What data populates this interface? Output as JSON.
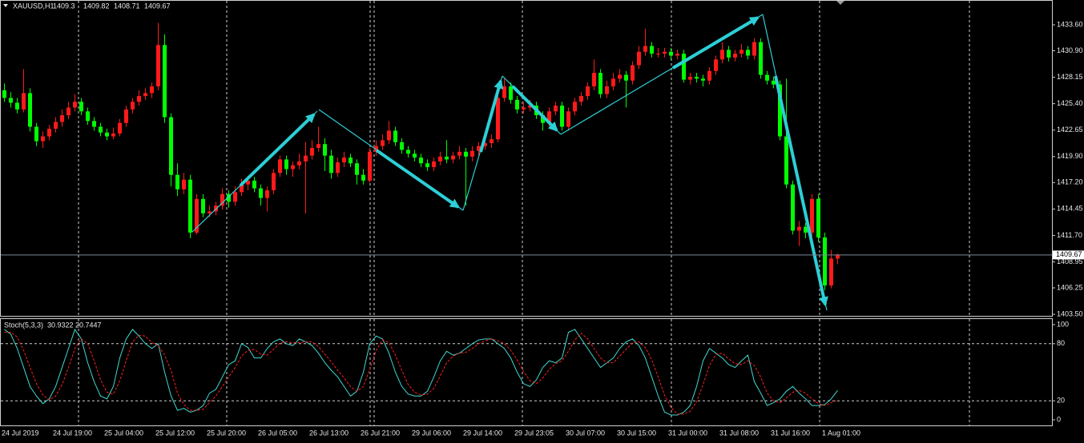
{
  "chart_data": [
    {
      "type": "candlestick",
      "symbol": "XAUUSD,H1",
      "up_color": "#ff1a1a",
      "down_color": "#00ff00",
      "categories": [
        "24 Jul 2019",
        null,
        null,
        null,
        null,
        null,
        null,
        null,
        "24 Jul 19:00",
        null,
        null,
        null,
        null,
        null,
        null,
        null,
        "25 Jul 04:00",
        null,
        null,
        null,
        null,
        null,
        null,
        null,
        "25 Jul 12:00",
        null,
        null,
        null,
        null,
        null,
        null,
        null,
        "25 Jul 20:00",
        null,
        null,
        null,
        null,
        null,
        null,
        null,
        "26 Jul 05:00",
        null,
        null,
        null,
        null,
        null,
        null,
        null,
        "26 Jul 13:00",
        null,
        null,
        null,
        null,
        null,
        null,
        null,
        "26 Jul 21:00",
        null,
        null,
        null,
        null,
        null,
        null,
        null,
        "29 Jul 06:00",
        null,
        null,
        null,
        null,
        null,
        null,
        null,
        "29 Jul 14:00",
        null,
        null,
        null,
        null,
        null,
        null,
        null,
        "29 Jul 23:05",
        null,
        null,
        null,
        null,
        null,
        null,
        null,
        "30 Jul 07:00",
        null,
        null,
        null,
        null,
        null,
        null,
        null,
        "30 Jul 15:00",
        null,
        null,
        null,
        null,
        null,
        null,
        null,
        "31 Jul 00:00",
        null,
        null,
        null,
        null,
        null,
        null,
        null,
        "31 Jul 08:00",
        null,
        null,
        null,
        null,
        null,
        null,
        null,
        "31 Jul 16:00",
        null,
        null,
        null,
        null,
        null,
        null,
        null,
        "1 Aug 01:00",
        null,
        null
      ],
      "candles": [
        [
          1426.8,
          1427.5,
          1425.6,
          1426.0
        ],
        [
          1426.0,
          1426.6,
          1425.0,
          1425.5
        ],
        [
          1425.5,
          1426.0,
          1424.4,
          1424.8
        ],
        [
          1424.8,
          1429.0,
          1424.5,
          1426.5
        ],
        [
          1426.5,
          1427.0,
          1422.5,
          1423.0
        ],
        [
          1423.0,
          1423.4,
          1421.0,
          1421.5
        ],
        [
          1421.5,
          1422.5,
          1420.8,
          1422.0
        ],
        [
          1422.0,
          1423.2,
          1421.6,
          1422.8
        ],
        [
          1422.8,
          1424.0,
          1422.4,
          1423.5
        ],
        [
          1423.5,
          1424.8,
          1423.0,
          1424.2
        ],
        [
          1424.2,
          1425.6,
          1423.8,
          1425.0
        ],
        [
          1425.0,
          1426.4,
          1424.6,
          1425.6
        ],
        [
          1425.6,
          1426.0,
          1424.2,
          1424.6
        ],
        [
          1424.6,
          1425.0,
          1423.2,
          1423.6
        ],
        [
          1423.6,
          1424.0,
          1422.6,
          1423.0
        ],
        [
          1423.0,
          1423.4,
          1422.0,
          1422.4
        ],
        [
          1422.4,
          1422.8,
          1421.6,
          1422.0
        ],
        [
          1422.0,
          1422.9,
          1421.7,
          1422.3
        ],
        [
          1422.3,
          1423.8,
          1422.0,
          1423.4
        ],
        [
          1423.4,
          1425.2,
          1423.0,
          1424.8
        ],
        [
          1424.8,
          1426.0,
          1424.4,
          1425.6
        ],
        [
          1425.6,
          1426.8,
          1425.2,
          1426.2
        ],
        [
          1426.2,
          1427.0,
          1425.8,
          1426.5
        ],
        [
          1426.5,
          1427.6,
          1426.0,
          1427.2
        ],
        [
          1427.2,
          1433.8,
          1426.8,
          1431.5
        ],
        [
          1431.5,
          1432.6,
          1423.4,
          1424.0
        ],
        [
          1424.0,
          1424.4,
          1416.8,
          1418.0
        ],
        [
          1418.0,
          1419.2,
          1415.8,
          1416.5
        ],
        [
          1416.5,
          1418.2,
          1416.0,
          1417.5
        ],
        [
          1417.5,
          1418.0,
          1411.4,
          1412.0
        ],
        [
          1412.0,
          1416.0,
          1411.8,
          1415.5
        ],
        [
          1415.5,
          1416.0,
          1413.6,
          1414.0
        ],
        [
          1414.0,
          1414.8,
          1413.6,
          1414.2
        ],
        [
          1414.2,
          1415.2,
          1413.8,
          1414.8
        ],
        [
          1414.8,
          1416.6,
          1414.4,
          1416.0
        ],
        [
          1416.0,
          1416.4,
          1414.6,
          1415.2
        ],
        [
          1415.2,
          1416.8,
          1414.8,
          1416.2
        ],
        [
          1416.2,
          1417.6,
          1415.8,
          1417.0
        ],
        [
          1417.0,
          1417.8,
          1416.4,
          1417.4
        ],
        [
          1417.4,
          1417.8,
          1416.2,
          1416.6
        ],
        [
          1416.6,
          1417.0,
          1414.8,
          1415.6
        ],
        [
          1415.6,
          1416.8,
          1414.2,
          1416.4
        ],
        [
          1416.4,
          1418.6,
          1416.0,
          1418.2
        ],
        [
          1418.2,
          1420.0,
          1417.8,
          1419.6
        ],
        [
          1419.6,
          1420.0,
          1418.0,
          1418.6
        ],
        [
          1418.6,
          1419.4,
          1417.8,
          1419.0
        ],
        [
          1419.0,
          1420.2,
          1418.6,
          1419.4
        ],
        [
          1419.4,
          1421.4,
          1414.0,
          1420.0
        ],
        [
          1420.0,
          1421.6,
          1419.6,
          1420.8
        ],
        [
          1420.8,
          1423.0,
          1420.4,
          1421.2
        ],
        [
          1421.2,
          1421.8,
          1418.4,
          1420.0
        ],
        [
          1420.0,
          1420.6,
          1417.6,
          1418.2
        ],
        [
          1418.2,
          1419.8,
          1417.8,
          1419.3
        ],
        [
          1419.3,
          1420.4,
          1418.8,
          1419.8
        ],
        [
          1419.8,
          1420.2,
          1418.8,
          1419.2
        ],
        [
          1419.2,
          1419.6,
          1417.0,
          1418.0
        ],
        [
          1418.0,
          1418.6,
          1417.0,
          1417.4
        ],
        [
          1417.4,
          1420.8,
          1417.2,
          1420.4
        ],
        [
          1420.4,
          1421.6,
          1420.0,
          1421.0
        ],
        [
          1421.0,
          1422.2,
          1420.6,
          1421.6
        ],
        [
          1421.6,
          1423.6,
          1421.2,
          1422.6
        ],
        [
          1422.6,
          1423.0,
          1421.0,
          1421.4
        ],
        [
          1421.4,
          1421.8,
          1420.2,
          1420.6
        ],
        [
          1420.6,
          1421.0,
          1419.8,
          1420.2
        ],
        [
          1420.2,
          1420.6,
          1419.4,
          1419.8
        ],
        [
          1419.8,
          1420.2,
          1418.8,
          1419.2
        ],
        [
          1419.2,
          1419.6,
          1418.4,
          1418.8
        ],
        [
          1418.8,
          1419.8,
          1418.4,
          1419.4
        ],
        [
          1419.4,
          1420.4,
          1419.0,
          1419.9
        ],
        [
          1419.9,
          1421.6,
          1419.2,
          1419.6
        ],
        [
          1419.6,
          1420.4,
          1419.2,
          1420.0
        ],
        [
          1420.0,
          1421.0,
          1419.6,
          1420.4
        ],
        [
          1420.4,
          1420.8,
          1414.8,
          1419.9
        ],
        [
          1419.9,
          1421.0,
          1419.4,
          1420.5
        ],
        [
          1420.5,
          1421.4,
          1420.0,
          1421.0
        ],
        [
          1421.0,
          1421.8,
          1420.6,
          1421.3
        ],
        [
          1421.3,
          1422.2,
          1420.8,
          1421.7
        ],
        [
          1421.7,
          1426.6,
          1421.4,
          1426.0
        ],
        [
          1426.0,
          1428.0,
          1425.6,
          1427.2
        ],
        [
          1427.2,
          1427.6,
          1425.4,
          1425.8
        ],
        [
          1425.8,
          1426.2,
          1424.4,
          1424.8
        ],
        [
          1424.8,
          1425.6,
          1424.4,
          1425.0
        ],
        [
          1425.0,
          1425.8,
          1424.6,
          1425.2
        ],
        [
          1425.2,
          1425.6,
          1423.8,
          1424.2
        ],
        [
          1424.2,
          1424.6,
          1422.6,
          1423.4
        ],
        [
          1423.4,
          1425.0,
          1423.0,
          1424.6
        ],
        [
          1424.6,
          1425.6,
          1424.2,
          1425.2
        ],
        [
          1425.2,
          1425.6,
          1422.6,
          1423.0
        ],
        [
          1423.0,
          1425.0,
          1422.6,
          1424.6
        ],
        [
          1424.6,
          1426.0,
          1424.2,
          1425.6
        ],
        [
          1425.6,
          1426.6,
          1425.2,
          1426.2
        ],
        [
          1426.2,
          1427.6,
          1425.8,
          1427.2
        ],
        [
          1427.2,
          1430.0,
          1426.8,
          1428.6
        ],
        [
          1428.6,
          1429.0,
          1426.0,
          1426.4
        ],
        [
          1426.4,
          1427.8,
          1426.0,
          1427.2
        ],
        [
          1427.2,
          1428.6,
          1426.8,
          1428.0
        ],
        [
          1428.0,
          1429.0,
          1427.6,
          1428.4
        ],
        [
          1428.4,
          1428.8,
          1425.0,
          1427.8
        ],
        [
          1427.8,
          1429.8,
          1427.4,
          1429.4
        ],
        [
          1429.4,
          1431.4,
          1429.0,
          1430.8
        ],
        [
          1430.8,
          1433.2,
          1430.4,
          1431.4
        ],
        [
          1431.4,
          1431.8,
          1430.2,
          1430.6
        ],
        [
          1430.6,
          1431.2,
          1430.2,
          1430.6
        ],
        [
          1430.6,
          1431.2,
          1430.2,
          1430.8
        ],
        [
          1430.8,
          1431.2,
          1430.0,
          1430.4
        ],
        [
          1430.4,
          1431.0,
          1430.0,
          1430.6
        ],
        [
          1430.6,
          1431.0,
          1427.6,
          1427.9
        ],
        [
          1427.9,
          1428.6,
          1427.4,
          1428.2
        ],
        [
          1428.2,
          1428.6,
          1427.6,
          1428.0
        ],
        [
          1428.0,
          1428.4,
          1427.2,
          1427.8
        ],
        [
          1427.8,
          1429.2,
          1427.4,
          1428.8
        ],
        [
          1428.8,
          1430.4,
          1428.4,
          1430.0
        ],
        [
          1430.0,
          1431.8,
          1429.6,
          1431.0
        ],
        [
          1431.0,
          1431.4,
          1429.8,
          1430.2
        ],
        [
          1430.2,
          1431.0,
          1429.8,
          1430.6
        ],
        [
          1430.6,
          1431.6,
          1430.2,
          1431.0
        ],
        [
          1431.0,
          1431.4,
          1430.0,
          1430.4
        ],
        [
          1430.4,
          1432.2,
          1430.0,
          1431.8
        ],
        [
          1431.8,
          1432.2,
          1428.0,
          1428.4
        ],
        [
          1428.4,
          1428.8,
          1427.4,
          1427.8
        ],
        [
          1427.8,
          1428.2,
          1427.0,
          1427.4
        ],
        [
          1427.4,
          1427.8,
          1421.6,
          1422.0
        ],
        [
          1422.0,
          1428.0,
          1416.6,
          1417.0
        ],
        [
          1417.0,
          1417.4,
          1411.8,
          1412.2
        ],
        [
          1412.2,
          1413.2,
          1410.6,
          1412.6
        ],
        [
          1412.6,
          1413.0,
          1411.4,
          1412.0
        ],
        [
          1412.0,
          1416.0,
          1411.6,
          1415.5
        ],
        [
          1415.5,
          1416.0,
          1411.0,
          1411.5
        ],
        [
          1411.5,
          1412.0,
          1406.0,
          1406.5
        ],
        [
          1406.5,
          1410.2,
          1406.2,
          1409.3
        ],
        [
          1409.3,
          1409.82,
          1408.71,
          1409.67
        ]
      ],
      "ylim": [
        1403.34,
        1436.18
      ],
      "yticks": [
        {
          "value": 1403.5,
          "label": "1403.50"
        },
        {
          "value": 1406.25,
          "label": "1406.25"
        },
        {
          "value": 1408.95,
          "label": "1408.95"
        },
        {
          "value": 1411.7,
          "label": "1411.70"
        },
        {
          "value": 1414.45,
          "label": "1414.45"
        },
        {
          "value": 1417.2,
          "label": "1417.20"
        },
        {
          "value": 1419.9,
          "label": "1419.90"
        },
        {
          "value": 1422.65,
          "label": "1422.65"
        },
        {
          "value": 1425.4,
          "label": "1425.40"
        },
        {
          "value": 1428.15,
          "label": "1428.15"
        },
        {
          "value": 1430.9,
          "label": "1430.90"
        },
        {
          "value": 1433.6,
          "label": "1433.60"
        }
      ]
    },
    {
      "type": "stochastic",
      "title": "Stoch(5,3,3)",
      "ylim": [
        -5.9,
        105.9
      ],
      "yticks": [
        0,
        20,
        80,
        100
      ],
      "levels": [
        20,
        80
      ],
      "series": [
        {
          "color": "#40d8d0",
          "dash": false,
          "values": [
            95,
            90,
            75,
            55,
            35,
            25,
            17,
            22,
            35,
            55,
            75,
            95,
            85,
            60,
            40,
            25,
            22,
            35,
            65,
            85,
            95,
            88,
            80,
            75,
            80,
            50,
            25,
            10,
            12,
            8,
            10,
            15,
            28,
            32,
            45,
            58,
            62,
            80,
            76,
            65,
            65,
            75,
            82,
            85,
            80,
            78,
            85,
            82,
            78,
            70,
            60,
            52,
            45,
            35,
            25,
            30,
            50,
            80,
            88,
            85,
            70,
            50,
            35,
            27,
            25,
            25,
            30,
            45,
            62,
            72,
            68,
            70,
            75,
            80,
            84,
            85,
            85,
            80,
            75,
            65,
            50,
            38,
            35,
            42,
            55,
            62,
            60,
            65,
            92,
            95,
            85,
            75,
            65,
            55,
            60,
            65,
            75,
            82,
            85,
            78,
            65,
            45,
            25,
            8,
            5,
            5,
            8,
            15,
            35,
            62,
            75,
            70,
            65,
            58,
            55,
            62,
            68,
            40,
            28,
            15,
            18,
            22,
            30,
            35,
            28,
            22,
            15,
            15,
            16,
            22,
            30.9322
          ]
        },
        {
          "color": "#ff2020",
          "dash": true,
          "values": [
            92,
            92,
            87,
            73,
            55,
            38,
            26,
            21,
            25,
            37,
            55,
            75,
            85,
            80,
            62,
            42,
            29,
            27,
            41,
            62,
            82,
            89,
            88,
            81,
            78,
            68,
            52,
            28,
            16,
            10,
            10,
            11,
            18,
            25,
            35,
            45,
            55,
            67,
            73,
            74,
            69,
            68,
            74,
            81,
            82,
            81,
            81,
            82,
            82,
            77,
            69,
            61,
            52,
            44,
            35,
            30,
            35,
            53,
            73,
            84,
            81,
            68,
            52,
            37,
            29,
            26,
            27,
            33,
            46,
            60,
            67,
            70,
            71,
            75,
            80,
            83,
            85,
            83,
            80,
            73,
            63,
            51,
            41,
            38,
            44,
            53,
            59,
            62,
            72,
            84,
            91,
            85,
            75,
            65,
            60,
            60,
            67,
            74,
            81,
            82,
            76,
            63,
            45,
            26,
            13,
            6,
            6,
            9,
            19,
            37,
            57,
            69,
            70,
            64,
            59,
            58,
            62,
            57,
            45,
            28,
            20,
            18,
            23,
            29,
            31,
            28,
            22,
            17,
            15,
            18,
            20.7447
          ]
        }
      ]
    }
  ]
}
